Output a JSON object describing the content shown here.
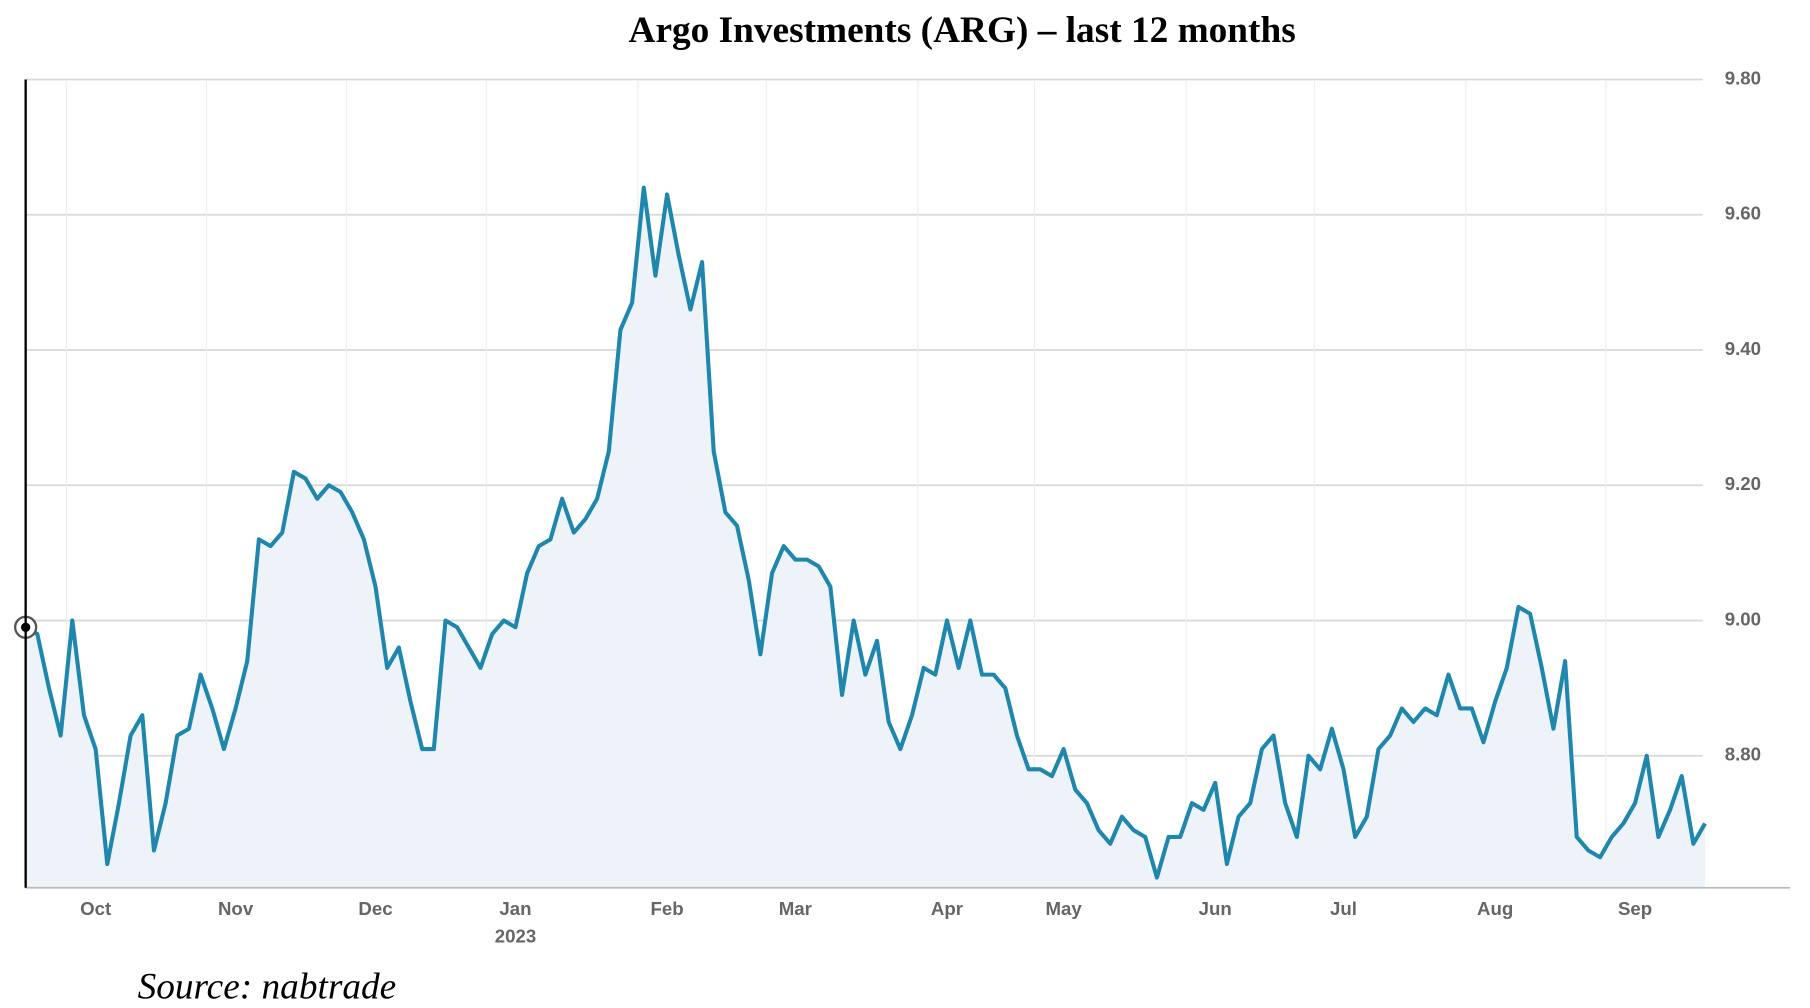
{
  "chart_data": {
    "type": "line",
    "title": "Argo Investments (ARG) – last 12 months",
    "source": "Source: nabtrade",
    "year_label": "2023",
    "categories": [
      null,
      null,
      null,
      null,
      null,
      null,
      "Oct",
      null,
      null,
      null,
      null,
      null,
      null,
      null,
      null,
      null,
      null,
      null,
      "Nov",
      null,
      null,
      null,
      null,
      null,
      null,
      null,
      null,
      null,
      null,
      null,
      "Dec",
      null,
      null,
      null,
      null,
      null,
      null,
      null,
      null,
      null,
      null,
      null,
      "Jan",
      null,
      null,
      null,
      null,
      null,
      null,
      null,
      null,
      null,
      null,
      null,
      null,
      "Feb",
      null,
      null,
      null,
      null,
      null,
      null,
      null,
      null,
      null,
      null,
      "Mar",
      null,
      null,
      null,
      null,
      null,
      null,
      null,
      null,
      null,
      null,
      null,
      null,
      "Apr",
      null,
      null,
      null,
      null,
      null,
      null,
      null,
      null,
      null,
      "May",
      null,
      null,
      null,
      null,
      null,
      null,
      null,
      null,
      null,
      null,
      null,
      null,
      "Jun",
      null,
      null,
      null,
      null,
      null,
      null,
      null,
      null,
      null,
      null,
      "Jul",
      null,
      null,
      null,
      null,
      null,
      null,
      null,
      null,
      null,
      null,
      null,
      null,
      "Aug",
      null,
      null,
      null,
      null,
      null,
      null,
      null,
      null,
      null,
      null,
      null,
      "Sep",
      null,
      null,
      null,
      null,
      null,
      null
    ],
    "series": [
      {
        "name": "ARG",
        "color": "#1f86ad",
        "fill": "#edf3f9",
        "values": [
          8.99,
          8.98,
          8.9,
          8.83,
          9.0,
          8.86,
          8.81,
          8.64,
          8.73,
          8.83,
          8.86,
          8.66,
          8.73,
          8.83,
          8.84,
          8.92,
          8.87,
          8.81,
          8.87,
          8.94,
          9.12,
          9.11,
          9.13,
          9.22,
          9.21,
          9.18,
          9.2,
          9.19,
          9.16,
          9.12,
          9.05,
          8.93,
          8.96,
          8.88,
          8.81,
          8.81,
          9.0,
          8.99,
          8.96,
          8.93,
          8.98,
          9.0,
          8.99,
          9.07,
          9.11,
          9.12,
          9.18,
          9.13,
          9.15,
          9.18,
          9.25,
          9.43,
          9.47,
          9.64,
          9.51,
          9.63,
          9.54,
          9.46,
          9.53,
          9.25,
          9.16,
          9.14,
          9.06,
          8.95,
          9.07,
          9.11,
          9.09,
          9.09,
          9.08,
          9.05,
          8.89,
          9.0,
          8.92,
          8.97,
          8.85,
          8.81,
          8.86,
          8.93,
          8.92,
          9.0,
          8.93,
          9.0,
          8.92,
          8.92,
          8.9,
          8.83,
          8.78,
          8.78,
          8.77,
          8.81,
          8.75,
          8.73,
          8.69,
          8.67,
          8.71,
          8.69,
          8.68,
          8.62,
          8.68,
          8.68,
          8.73,
          8.72,
          8.76,
          8.64,
          8.71,
          8.73,
          8.81,
          8.83,
          8.73,
          8.68,
          8.8,
          8.78,
          8.84,
          8.78,
          8.68,
          8.71,
          8.81,
          8.83,
          8.87,
          8.85,
          8.87,
          8.86,
          8.92,
          8.87,
          8.87,
          8.82,
          8.88,
          8.93,
          9.02,
          9.01,
          8.93,
          8.84,
          8.94,
          8.68,
          8.66,
          8.65,
          8.68,
          8.7,
          8.73,
          8.8,
          8.68,
          8.72,
          8.77,
          8.67,
          8.7
        ]
      }
    ],
    "ylim": [
      8.605,
      9.8
    ],
    "yticks": [
      {
        "value": 8.8,
        "label": "8.80"
      },
      {
        "value": 9.0,
        "label": "9.00"
      },
      {
        "value": 9.2,
        "label": "9.20"
      },
      {
        "value": 9.4,
        "label": "9.40"
      },
      {
        "value": 9.6,
        "label": "9.60"
      },
      {
        "value": 9.8,
        "label": "9.80"
      }
    ],
    "grid": true
  }
}
